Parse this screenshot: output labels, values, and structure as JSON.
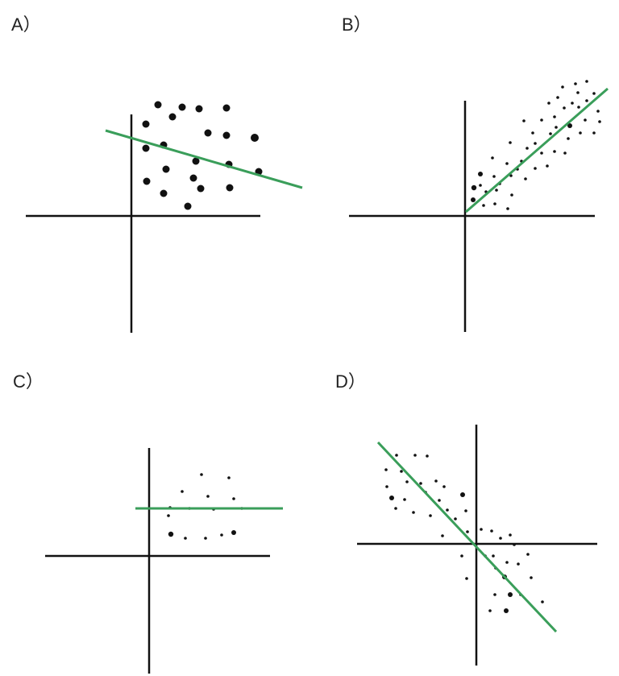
{
  "colors": {
    "axis": "#111111",
    "dot": "#111111",
    "fit_line": "#3a9e5a"
  },
  "panels": [
    {
      "label": "A）",
      "trend": "negative-weak",
      "points_count": 20
    },
    {
      "label": "B）",
      "trend": "positive-strong",
      "points_count": 50
    },
    {
      "label": "C）",
      "trend": "zero",
      "points_count": 15
    },
    {
      "label": "D）",
      "trend": "negative-strong",
      "points_count": 44
    }
  ]
}
